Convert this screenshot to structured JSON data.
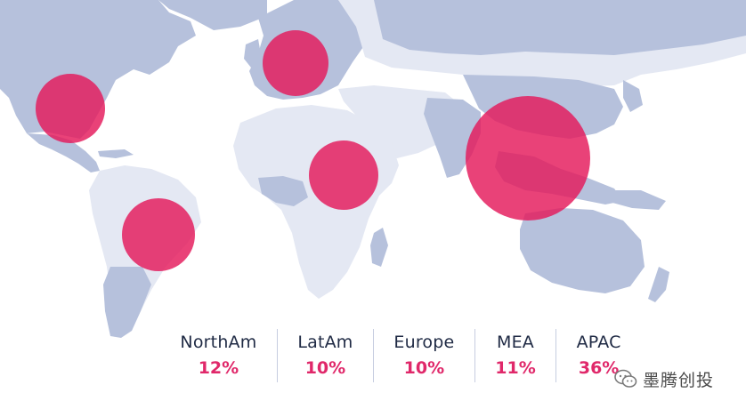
{
  "colors": {
    "ocean": "#ffffff",
    "land_primary": "#b6c1dc",
    "land_secondary": "#e4e8f3",
    "bubble": "#e4185a",
    "region_text": "#1f2a44",
    "share_text": "#e0286a"
  },
  "regions": [
    {
      "name": "NorthAm",
      "share": "12%",
      "share_value": 12
    },
    {
      "name": "LatAm",
      "share": "10%",
      "share_value": 10
    },
    {
      "name": "Europe",
      "share": "10%",
      "share_value": 10
    },
    {
      "name": "MEA",
      "share": "11%",
      "share_value": 11
    },
    {
      "name": "APAC",
      "share": "36%",
      "share_value": 36
    }
  ],
  "watermark": {
    "text": "墨腾创投",
    "icon": "wechat-icon"
  }
}
